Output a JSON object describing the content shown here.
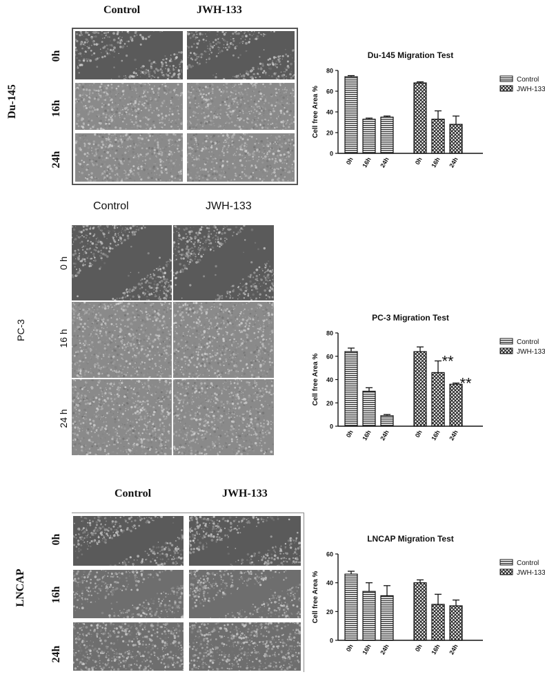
{
  "panels": [
    {
      "id": "du145",
      "cell_line": "Du-145",
      "columns": [
        "Control",
        "JWH-133"
      ],
      "rows": [
        "0h",
        "16h",
        "24h"
      ]
    },
    {
      "id": "pc3",
      "cell_line": "PC-3",
      "columns": [
        "Control",
        "JWH-133"
      ],
      "rows": [
        "0 h",
        "16 h",
        "24 h"
      ]
    },
    {
      "id": "lncap",
      "cell_line": "LNCAP",
      "columns": [
        "Control",
        "JWH-133"
      ],
      "rows": [
        "0h",
        "16h",
        "24h"
      ]
    }
  ],
  "chart_data": [
    {
      "type": "bar",
      "title": "Du-145 Migration Test",
      "ylabel": "Cell free Area %",
      "xlabel": "",
      "ylim": [
        0,
        80
      ],
      "yticks": [
        0,
        20,
        40,
        60,
        80
      ],
      "categories": [
        "0h",
        "16h",
        "24h"
      ],
      "legend": "top-right",
      "series": [
        {
          "name": "Control",
          "pattern": "horizontal-stripes",
          "values": [
            74,
            33,
            35
          ],
          "errors": [
            1,
            1,
            1
          ]
        },
        {
          "name": "JWH-133",
          "pattern": "crosshatch",
          "values": [
            68,
            33,
            28
          ],
          "errors": [
            1,
            8,
            8
          ]
        }
      ],
      "annotations": []
    },
    {
      "type": "bar",
      "title": "PC-3 Migration Test",
      "ylabel": "Cell free Area %",
      "xlabel": "",
      "ylim": [
        0,
        80
      ],
      "yticks": [
        0,
        20,
        40,
        60,
        80
      ],
      "categories": [
        "0h",
        "16h",
        "24h"
      ],
      "legend": "top-right",
      "series": [
        {
          "name": "Control",
          "pattern": "horizontal-stripes",
          "values": [
            64,
            30,
            9
          ],
          "errors": [
            3,
            3,
            1
          ]
        },
        {
          "name": "JWH-133",
          "pattern": "crosshatch",
          "values": [
            64,
            46,
            36
          ],
          "errors": [
            4,
            10,
            1
          ]
        }
      ],
      "annotations": [
        {
          "series": 1,
          "category": 1,
          "text": "**"
        },
        {
          "series": 1,
          "category": 2,
          "text": "**"
        }
      ]
    },
    {
      "type": "bar",
      "title": "LNCAP Migration Test",
      "ylabel": "Cell free Area %",
      "xlabel": "",
      "ylim": [
        0,
        60
      ],
      "yticks": [
        0,
        20,
        40,
        60
      ],
      "categories": [
        "0h",
        "16h",
        "24h"
      ],
      "legend": "top-right",
      "series": [
        {
          "name": "Control",
          "pattern": "horizontal-stripes",
          "values": [
            46,
            34,
            31
          ],
          "errors": [
            2,
            6,
            7
          ]
        },
        {
          "name": "JWH-133",
          "pattern": "crosshatch",
          "values": [
            40,
            25,
            24
          ],
          "errors": [
            2,
            7,
            4
          ]
        }
      ],
      "annotations": []
    }
  ]
}
